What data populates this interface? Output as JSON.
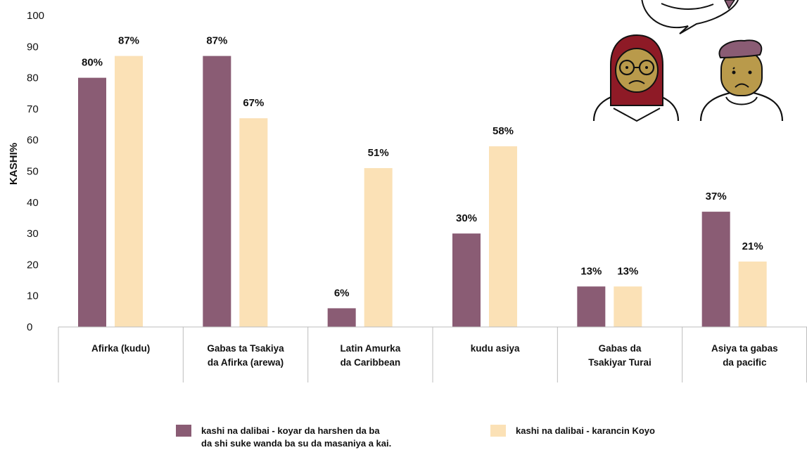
{
  "colors": {
    "series_1": "#8a5c74",
    "series_2": "#fbe1b6",
    "axis": "#bdbdbd",
    "headscarf": "#8e1a26",
    "face": "#b99a4b",
    "cap": "#8a5c74"
  },
  "icons": [
    "woman-headscarf-sad-icon",
    "man-cap-sad-icon",
    "speech-bubble-icon"
  ],
  "chart_data": {
    "type": "bar",
    "ylabel": "KASHI%",
    "ylim": [
      0,
      100
    ],
    "yticks": [
      0,
      10,
      20,
      30,
      40,
      50,
      60,
      70,
      80,
      90,
      100
    ],
    "categories": [
      [
        "Afirka (kudu)"
      ],
      [
        "Gabas ta Tsakiya",
        "da Afirka (arewa)"
      ],
      [
        "Latin Amurka",
        "da Caribbean"
      ],
      [
        "kudu asiya"
      ],
      [
        "Gabas da",
        "Tsakiyar Turai"
      ],
      [
        "Asiya ta gabas",
        "da pacific"
      ]
    ],
    "series": [
      {
        "name": "kashi na dalibai - koyar da harshen da ba da shi suke wanda ba su da masaniya a kai.",
        "name_lines": [
          "kashi na dalibai - koyar da harshen da ba",
          "da shi suke wanda ba su da masaniya a kai."
        ],
        "values": [
          80,
          87,
          6,
          30,
          13,
          37
        ],
        "labels": [
          "80%",
          "87%",
          "6%",
          "30%",
          "13%",
          "37%"
        ]
      },
      {
        "name": "kashi na dalibai - karancin Koyo",
        "name_lines": [
          "kashi na dalibai - karancin Koyo"
        ],
        "values": [
          87,
          67,
          51,
          58,
          13,
          21
        ],
        "labels": [
          "87%",
          "67%",
          "51%",
          "58%",
          "13%",
          "21%"
        ]
      }
    ],
    "legend_position": "bottom",
    "grid": false
  }
}
